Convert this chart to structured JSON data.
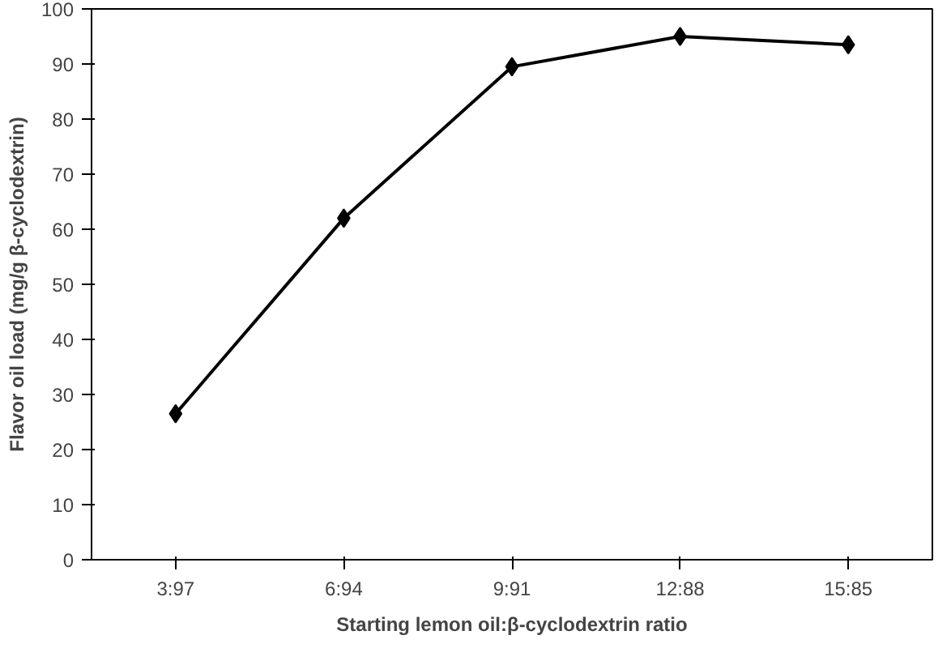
{
  "chart_data": {
    "type": "line",
    "xlabel": "Starting lemon oil:β-cyclodextrin ratio",
    "ylabel": "Flavor oil load (mg/g β-cyclodextrin)",
    "categories": [
      "3:97",
      "6:94",
      "9:91",
      "12:88",
      "15:85"
    ],
    "series": [
      {
        "color": "#000000",
        "values": [
          26.5,
          62,
          89.5,
          95,
          93.5
        ]
      }
    ],
    "ylim": [
      0,
      100
    ],
    "yticks": [
      0,
      10,
      20,
      30,
      40,
      50,
      60,
      70,
      80,
      90,
      100
    ],
    "grid": false,
    "marker": "diamond",
    "line_style": "solid"
  }
}
